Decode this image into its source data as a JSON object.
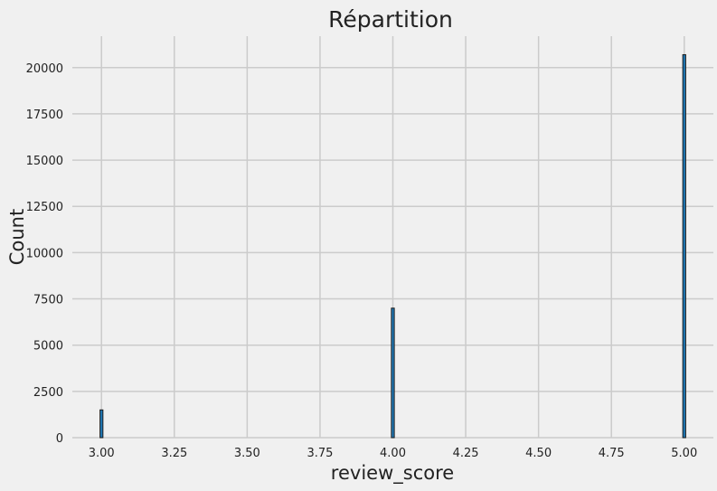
{
  "chart_data": {
    "type": "bar",
    "title": "Répartition",
    "xlabel": "review_score",
    "ylabel": "Count",
    "x": [
      3.0,
      4.0,
      5.0
    ],
    "values": [
      1500,
      7000,
      20700
    ],
    "xlim": [
      2.9,
      5.1
    ],
    "ylim": [
      0,
      21700
    ],
    "xticks": [
      3.0,
      3.25,
      3.5,
      3.75,
      4.0,
      4.25,
      4.5,
      4.75,
      5.0
    ],
    "xtick_labels": [
      "3.00",
      "3.25",
      "3.50",
      "3.75",
      "4.00",
      "4.25",
      "4.50",
      "4.75",
      "5.00"
    ],
    "yticks": [
      0,
      2500,
      5000,
      7500,
      10000,
      12500,
      15000,
      17500,
      20000
    ],
    "ytick_labels": [
      "0",
      "2500",
      "5000",
      "7500",
      "10000",
      "12500",
      "15000",
      "17500",
      "20000"
    ],
    "bar_width": 0.01,
    "grid": true,
    "colors": {
      "bar": "#1f77b4",
      "bar_edge": "#1c1c1c",
      "grid": "#cbcbcb",
      "background": "#f0f0f0",
      "text": "#222222"
    }
  }
}
